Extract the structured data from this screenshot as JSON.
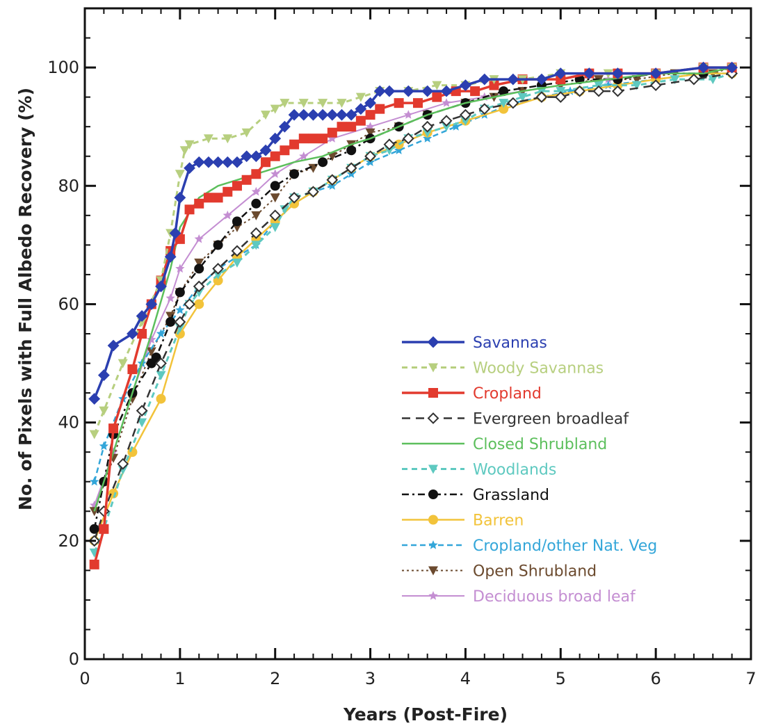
{
  "chart_data": {
    "type": "line",
    "title": "",
    "xlabel": "Years (Post-Fire)",
    "ylabel": "No. of Pixels with Full Albedo Recovery (%)",
    "xlim": [
      0,
      7
    ],
    "ylim": [
      0,
      110
    ],
    "xticks": [
      0,
      1,
      2,
      3,
      4,
      5,
      6,
      7
    ],
    "yticks": [
      0,
      20,
      40,
      60,
      80,
      100
    ],
    "grid": false,
    "legend_position": "lower-right",
    "series": [
      {
        "name": "Savannas",
        "color": "#2b3fb0",
        "dash": "",
        "marker": "diamond",
        "width": 3.5,
        "x": [
          0.1,
          0.2,
          0.3,
          0.5,
          0.6,
          0.7,
          0.8,
          0.9,
          0.95,
          1.0,
          1.1,
          1.2,
          1.3,
          1.4,
          1.5,
          1.6,
          1.7,
          1.8,
          1.9,
          2.0,
          2.1,
          2.2,
          2.3,
          2.4,
          2.5,
          2.6,
          2.7,
          2.8,
          2.9,
          3.0,
          3.1,
          3.2,
          3.4,
          3.6,
          3.8,
          4.0,
          4.2,
          4.5,
          4.8,
          5.0,
          5.3,
          5.6,
          6.0,
          6.5,
          6.8
        ],
        "y": [
          44,
          48,
          53,
          55,
          58,
          60,
          63,
          68,
          72,
          78,
          83,
          84,
          84,
          84,
          84,
          84,
          85,
          85,
          86,
          88,
          90,
          92,
          92,
          92,
          92,
          92,
          92,
          92,
          93,
          94,
          96,
          96,
          96,
          96,
          96,
          97,
          98,
          98,
          98,
          99,
          99,
          99,
          99,
          100,
          100
        ]
      },
      {
        "name": "Woody Savannas",
        "color": "#b7cf7f",
        "dash": "8,6",
        "marker": "triangle",
        "width": 3,
        "x": [
          0.1,
          0.2,
          0.4,
          0.6,
          0.8,
          0.9,
          1.0,
          1.05,
          1.1,
          1.3,
          1.5,
          1.7,
          1.9,
          2.0,
          2.1,
          2.3,
          2.5,
          2.7,
          2.9,
          3.1,
          3.4,
          3.7,
          4.0,
          4.3,
          4.6,
          5.0,
          5.5,
          6.0,
          6.5,
          6.8
        ],
        "y": [
          38,
          42,
          50,
          57,
          64,
          72,
          82,
          86,
          87,
          88,
          88,
          89,
          92,
          93,
          94,
          94,
          94,
          94,
          95,
          96,
          96,
          97,
          97,
          98,
          98,
          99,
          99,
          99,
          100,
          100
        ]
      },
      {
        "name": "Cropland",
        "color": "#e23a2e",
        "dash": "",
        "marker": "square",
        "width": 3.5,
        "x": [
          0.1,
          0.2,
          0.3,
          0.5,
          0.6,
          0.7,
          0.8,
          0.9,
          1.0,
          1.1,
          1.2,
          1.3,
          1.4,
          1.5,
          1.6,
          1.7,
          1.8,
          1.9,
          2.0,
          2.1,
          2.2,
          2.3,
          2.4,
          2.5,
          2.6,
          2.7,
          2.8,
          2.9,
          3.0,
          3.1,
          3.3,
          3.5,
          3.7,
          3.9,
          4.1,
          4.3,
          4.6,
          5.0,
          5.3,
          5.6,
          6.0,
          6.5,
          6.8
        ],
        "y": [
          16,
          22,
          39,
          49,
          55,
          60,
          64,
          69,
          71,
          76,
          77,
          78,
          78,
          79,
          80,
          81,
          82,
          84,
          85,
          86,
          87,
          88,
          88,
          88,
          89,
          90,
          90,
          91,
          92,
          93,
          94,
          94,
          95,
          96,
          96,
          97,
          98,
          98,
          99,
          99,
          99,
          100,
          100
        ]
      },
      {
        "name": "Evergreen broadleaf",
        "color": "#333333",
        "dash": "12,8",
        "marker": "diamond-open",
        "width": 2.5,
        "x": [
          0.1,
          0.2,
          0.4,
          0.6,
          0.8,
          1.0,
          1.1,
          1.2,
          1.4,
          1.6,
          1.8,
          2.0,
          2.2,
          2.4,
          2.6,
          2.8,
          3.0,
          3.2,
          3.4,
          3.6,
          3.8,
          4.0,
          4.2,
          4.5,
          4.8,
          5.0,
          5.2,
          5.4,
          5.6,
          6.0,
          6.4,
          6.8
        ],
        "y": [
          20,
          25,
          33,
          42,
          50,
          57,
          60,
          63,
          66,
          69,
          72,
          75,
          78,
          79,
          81,
          83,
          85,
          87,
          88,
          90,
          91,
          92,
          93,
          94,
          95,
          95,
          96,
          96,
          96,
          97,
          98,
          99
        ]
      },
      {
        "name": "Closed Shrubland",
        "color": "#5cbf5c",
        "dash": "",
        "marker": "none",
        "width": 2.5,
        "x": [
          0.1,
          0.3,
          0.5,
          0.7,
          0.9,
          1.0,
          1.2,
          1.4,
          1.6,
          1.8,
          2.0,
          2.2,
          2.5,
          2.8,
          3.0,
          3.3,
          3.6,
          4.0,
          4.3,
          4.6,
          5.0,
          5.5,
          6.0,
          6.5,
          6.8
        ],
        "y": [
          25,
          35,
          45,
          55,
          66,
          73,
          78,
          80,
          81,
          82,
          83,
          84,
          85,
          87,
          88,
          90,
          92,
          94,
          95,
          96,
          97,
          98,
          99,
          99,
          100
        ]
      },
      {
        "name": "Woodlands",
        "color": "#5ec9c0",
        "dash": "8,6",
        "marker": "triangle",
        "width": 3,
        "x": [
          0.1,
          0.2,
          0.4,
          0.6,
          0.8,
          1.0,
          1.1,
          1.2,
          1.4,
          1.6,
          1.8,
          2.0,
          2.1,
          2.2,
          2.4,
          2.6,
          2.8,
          3.0,
          3.2,
          3.4,
          3.6,
          3.8,
          4.0,
          4.2,
          4.4,
          4.6,
          4.8,
          5.0,
          5.4,
          5.8,
          6.2,
          6.6,
          6.8
        ],
        "y": [
          18,
          22,
          32,
          40,
          48,
          56,
          60,
          62,
          65,
          67,
          70,
          73,
          76,
          78,
          79,
          81,
          83,
          85,
          86,
          88,
          89,
          90,
          91,
          93,
          94,
          95,
          96,
          96,
          97,
          97,
          98,
          98,
          99
        ]
      },
      {
        "name": "Grassland",
        "color": "#111111",
        "dash": "10,5,3,5",
        "marker": "circle",
        "width": 2.5,
        "x": [
          0.1,
          0.2,
          0.3,
          0.5,
          0.7,
          0.75,
          0.9,
          1.0,
          1.2,
          1.4,
          1.6,
          1.8,
          2.0,
          2.2,
          2.5,
          2.8,
          3.0,
          3.3,
          3.6,
          4.0,
          4.4,
          4.8,
          5.2,
          5.6,
          6.0,
          6.5,
          6.8
        ],
        "y": [
          22,
          30,
          38,
          45,
          50,
          51,
          57,
          62,
          66,
          70,
          74,
          77,
          80,
          82,
          84,
          86,
          88,
          90,
          92,
          94,
          96,
          97,
          98,
          98,
          99,
          99,
          100
        ]
      },
      {
        "name": "Barren",
        "color": "#f2c33a",
        "dash": "",
        "marker": "circle",
        "width": 2.5,
        "x": [
          0.1,
          0.3,
          0.5,
          0.8,
          1.0,
          1.2,
          1.4,
          1.6,
          1.8,
          2.0,
          2.2,
          2.4,
          2.6,
          2.8,
          3.0,
          3.3,
          3.6,
          4.0,
          4.4,
          4.8,
          5.2,
          5.6,
          6.0,
          6.5,
          6.8
        ],
        "y": [
          20,
          28,
          35,
          44,
          55,
          60,
          64,
          68,
          71,
          74,
          77,
          79,
          81,
          83,
          85,
          87,
          89,
          91,
          93,
          95,
          96,
          97,
          98,
          99,
          99
        ]
      },
      {
        "name": "Cropland/other Nat. Veg",
        "color": "#33a6d9",
        "dash": "8,5",
        "marker": "star",
        "width": 2.5,
        "x": [
          0.1,
          0.2,
          0.4,
          0.6,
          0.8,
          1.0,
          1.2,
          1.4,
          1.6,
          1.8,
          2.0,
          2.2,
          2.4,
          2.6,
          2.8,
          3.0,
          3.3,
          3.6,
          3.9,
          4.2,
          4.5,
          4.8,
          5.1,
          5.5,
          6.0,
          6.5,
          6.8
        ],
        "y": [
          30,
          36,
          44,
          50,
          55,
          59,
          63,
          66,
          68,
          70,
          74,
          77,
          79,
          80,
          82,
          84,
          86,
          88,
          90,
          92,
          94,
          95,
          96,
          97,
          98,
          99,
          99
        ]
      },
      {
        "name": "Open Shrubland",
        "color": "#6b4a2e",
        "dash": "3,4",
        "marker": "triangle",
        "width": 2,
        "x": [
          0.1,
          0.3,
          0.5,
          0.7,
          0.9,
          1.0,
          1.2,
          1.4,
          1.6,
          1.8,
          2.0,
          2.2,
          2.4,
          2.6,
          2.8,
          3.0,
          3.3,
          3.6,
          4.0,
          4.3,
          4.6,
          5.0,
          5.4,
          5.8,
          6.2,
          6.6,
          6.8
        ],
        "y": [
          25,
          34,
          44,
          52,
          58,
          62,
          67,
          70,
          73,
          75,
          78,
          82,
          83,
          85,
          87,
          89,
          90,
          92,
          94,
          95,
          96,
          97,
          98,
          98,
          99,
          99,
          100
        ]
      },
      {
        "name": "Deciduous broad leaf",
        "color": "#c48ed2",
        "dash": "",
        "marker": "star",
        "width": 2,
        "x": [
          0.1,
          0.3,
          0.5,
          0.7,
          0.9,
          1.0,
          1.2,
          1.5,
          1.8,
          2.0,
          2.3,
          2.6,
          3.0,
          3.4,
          3.8,
          4.2,
          4.6,
          5.0,
          5.5,
          6.0,
          6.5,
          6.8
        ],
        "y": [
          26,
          35,
          45,
          54,
          61,
          66,
          71,
          75,
          79,
          82,
          85,
          88,
          90,
          92,
          94,
          95,
          96,
          97,
          98,
          99,
          99,
          100
        ]
      }
    ]
  }
}
